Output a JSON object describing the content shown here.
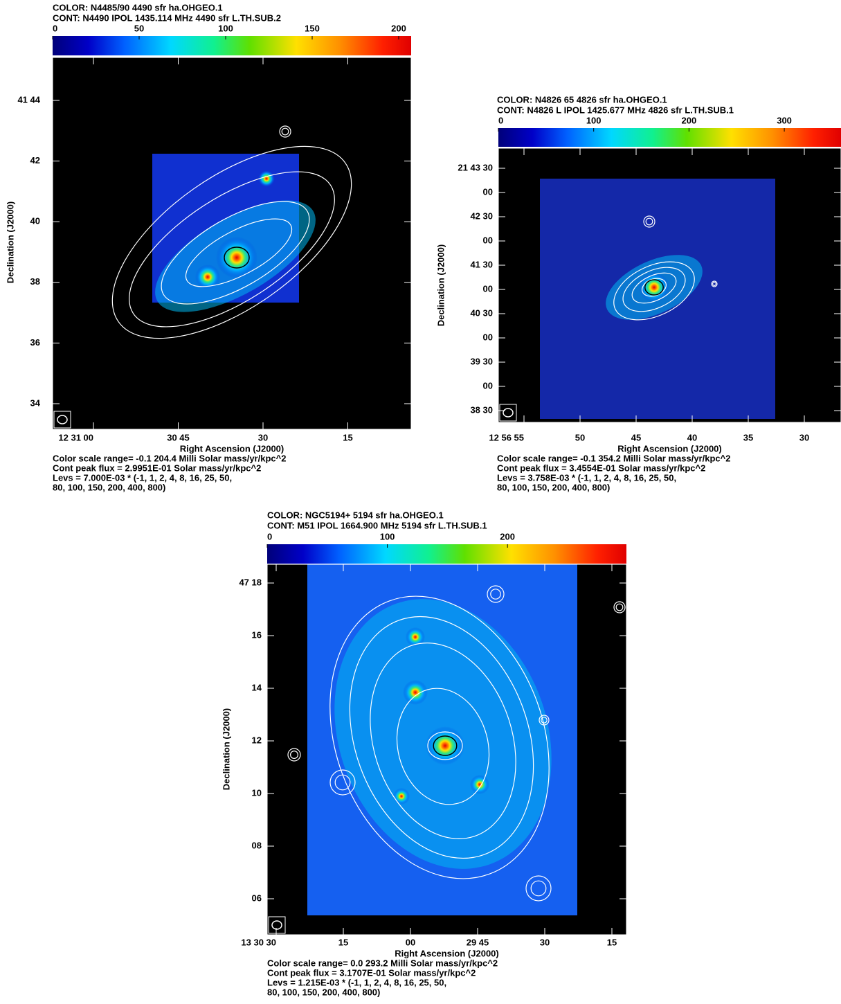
{
  "panels": [
    {
      "color_label": "COLOR: N4485/90  4490 sfr ha.OHGEO.1",
      "cont_label": "CONT: N4490  IPOL  1435.114 MHz  4490 sfr L.TH.SUB.2",
      "colorbar": {
        "lim": [
          0,
          207.2
        ],
        "ticks": [
          0,
          50,
          100,
          150,
          200
        ]
      },
      "y_ticks": [
        "41 44",
        "42",
        "40",
        "38",
        "36",
        "34"
      ],
      "x_ticks": [
        "12 31 00",
        "30 45",
        "30",
        "15"
      ],
      "x_label": "Right Ascension (J2000)",
      "y_label": "Declination (J2000)",
      "notes": [
        "Color scale range= -0.1 204.4 Milli Solar mass/yr/kpc^2",
        "Cont peak flux =  2.9951E-01 Solar mass/yr/kpc^2",
        "Levs = 7.000E-03 * (-1, 1, 2, 4, 8, 16, 25, 50,",
        "80, 100, 150, 200, 400, 800)"
      ]
    },
    {
      "color_label": "COLOR: N4826 65  4826 sfr ha.OHGEO.1",
      "cont_label": "CONT: N4826 L  IPOL  1425.677 MHz  4826 sfr L.TH.SUB.1",
      "colorbar": {
        "lim": [
          0,
          359.5
        ],
        "ticks": [
          0,
          100,
          200,
          300
        ]
      },
      "y_ticks": [
        "21 43 30",
        "00",
        "42 30",
        "00",
        "41 30",
        "00",
        "40 30",
        "00",
        "39 30",
        "00",
        "38 30"
      ],
      "x_ticks": [
        "12 56 55",
        "50",
        "45",
        "40",
        "35",
        "30"
      ],
      "x_label": "Right Ascension (J2000)",
      "y_label": "Declination (J2000)",
      "notes": [
        "Color scale range= -0.1 354.2 Milli Solar mass/yr/kpc^2",
        "Cont peak flux =  3.4554E-01 Solar mass/yr/kpc^2",
        "Levs = 3.758E-03 * (-1, 1, 2, 4, 8, 16, 25, 50,",
        "80, 100, 150, 200, 400, 800)"
      ]
    },
    {
      "color_label": "COLOR: NGC5194+  5194 sfr ha.OHGEO.1",
      "cont_label": "CONT: M51  IPOL  1664.900 MHz  5194 sfr L.TH.SUB.1",
      "colorbar": {
        "lim": [
          0,
          299
        ],
        "ticks": [
          0,
          100,
          200
        ]
      },
      "y_ticks": [
        "47 18",
        "16",
        "14",
        "12",
        "10",
        "08",
        "06"
      ],
      "x_ticks": [
        "13 30 30",
        "15",
        "00",
        "29 45",
        "30",
        "15"
      ],
      "x_label": "Right Ascension (J2000)",
      "y_label": "Declination (J2000)",
      "notes": [
        "Color scale range= 0.0 293.2 Milli Solar mass/yr/kpc^2",
        "Cont peak flux =  3.1707E-01 Solar mass/yr/kpc^2",
        "Levs = 1.215E-03 * (-1, 1, 2, 4, 8, 16, 25, 50,",
        "80, 100, 150, 200, 400, 800)"
      ]
    }
  ]
}
